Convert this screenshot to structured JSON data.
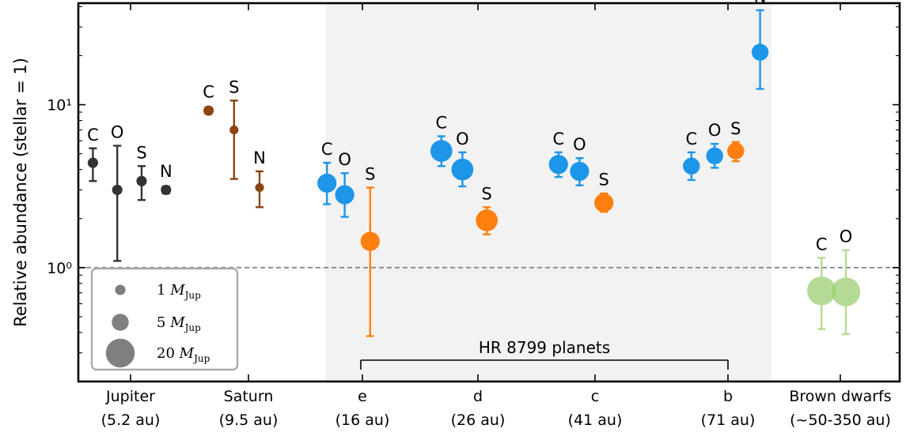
{
  "chart_data": {
    "type": "scatter",
    "ylabel": "Relative abundance (stellar = 1)",
    "yscale": "log",
    "ylim": [
      0.2,
      42
    ],
    "yticks": [
      {
        "value": 1,
        "label": "10⁰"
      },
      {
        "value": 10,
        "label": "10¹"
      }
    ],
    "reference_line": {
      "value": 1,
      "style": "dashed",
      "color": "#888888"
    },
    "categories": [
      {
        "key": "jupiter",
        "line1": "Jupiter",
        "line2": "(5.2 au)"
      },
      {
        "key": "saturn",
        "line1": "Saturn",
        "line2": "(9.5 au)"
      },
      {
        "key": "e",
        "line1": "e",
        "line2": "(16 au)"
      },
      {
        "key": "d",
        "line1": "d",
        "line2": "(26 au)"
      },
      {
        "key": "c",
        "line1": "c",
        "line2": "(41 au)"
      },
      {
        "key": "b",
        "line1": "b",
        "line2": "(71 au)"
      },
      {
        "key": "bd",
        "line1": "Brown dwarfs",
        "line2": "(~50-350 au)"
      }
    ],
    "shaded_region": {
      "from": "e",
      "to": "b",
      "color": "#f2f2f2"
    },
    "group_bracket": {
      "label": "HR 8799 planets",
      "from": "e",
      "to": "b"
    },
    "colors": {
      "jupiter": "#333333",
      "saturn": "#8b4513",
      "carbon_oxygen": "#1c96e8",
      "sulfur": "#ff7f0e",
      "brown_dwarf": "#9bcf73",
      "legend": "#7f7f7f"
    },
    "points": [
      {
        "cat": 0,
        "offset": -0.34,
        "element": "C",
        "value": 4.4,
        "err_low": 3.4,
        "err_high": 5.4,
        "mass": 1,
        "color": "#333333"
      },
      {
        "cat": 0,
        "offset": -0.12,
        "element": "O",
        "value": 3.0,
        "err_low": 1.1,
        "err_high": 5.6,
        "mass": 1,
        "color": "#333333"
      },
      {
        "cat": 0,
        "offset": 0.1,
        "element": "S",
        "value": 3.4,
        "err_low": 2.6,
        "err_high": 4.2,
        "mass": 1,
        "color": "#333333"
      },
      {
        "cat": 0,
        "offset": 0.32,
        "element": "N",
        "value": 3.0,
        "err_low": 2.85,
        "err_high": 3.15,
        "mass": 1,
        "color": "#333333"
      },
      {
        "cat": 1,
        "offset": -0.36,
        "element": "C",
        "value": 9.2,
        "err_low": 8.8,
        "err_high": 9.6,
        "mass": 1,
        "color": "#8b4513"
      },
      {
        "cat": 1,
        "offset": -0.13,
        "element": "S",
        "value": 7.0,
        "err_low": 3.5,
        "err_high": 10.6,
        "mass": 0.5,
        "color": "#8b4513"
      },
      {
        "cat": 1,
        "offset": 0.1,
        "element": "N",
        "value": 3.1,
        "err_low": 2.35,
        "err_high": 3.9,
        "mass": 0.5,
        "color": "#8b4513"
      },
      {
        "cat": 2,
        "offset": -0.32,
        "element": "C",
        "value": 3.3,
        "err_low": 2.45,
        "err_high": 4.4,
        "mass": 7,
        "color": "#1c96e8"
      },
      {
        "cat": 2,
        "offset": -0.16,
        "element": "O",
        "value": 2.8,
        "err_low": 2.05,
        "err_high": 3.8,
        "mass": 7,
        "color": "#1c96e8"
      },
      {
        "cat": 2,
        "offset": 0.07,
        "element": "S",
        "value": 1.45,
        "err_low": 0.38,
        "err_high": 3.1,
        "mass": 7,
        "color": "#ff7f0e"
      },
      {
        "cat": 3,
        "offset": -0.33,
        "element": "C",
        "value": 5.2,
        "err_low": 4.2,
        "err_high": 6.4,
        "mass": 10,
        "color": "#1c96e8"
      },
      {
        "cat": 3,
        "offset": -0.14,
        "element": "O",
        "value": 4.0,
        "err_low": 3.15,
        "err_high": 5.1,
        "mass": 10,
        "color": "#1c96e8"
      },
      {
        "cat": 3,
        "offset": 0.08,
        "element": "S",
        "value": 1.95,
        "err_low": 1.6,
        "err_high": 2.35,
        "mass": 10,
        "color": "#ff7f0e"
      },
      {
        "cat": 4,
        "offset": -0.33,
        "element": "C",
        "value": 4.3,
        "err_low": 3.6,
        "err_high": 5.1,
        "mass": 7,
        "color": "#1c96e8"
      },
      {
        "cat": 4,
        "offset": -0.14,
        "element": "O",
        "value": 3.9,
        "err_low": 3.2,
        "err_high": 4.7,
        "mass": 7,
        "color": "#1c96e8"
      },
      {
        "cat": 4,
        "offset": 0.08,
        "element": "S",
        "value": 2.5,
        "err_low": 2.2,
        "err_high": 2.85,
        "mass": 7,
        "color": "#ff7f0e"
      },
      {
        "cat": 5,
        "offset": -0.33,
        "element": "C",
        "value": 4.2,
        "err_low": 3.45,
        "err_high": 5.1,
        "mass": 5,
        "color": "#1c96e8"
      },
      {
        "cat": 5,
        "offset": -0.12,
        "element": "O",
        "value": 4.85,
        "err_low": 4.1,
        "err_high": 5.75,
        "mass": 5,
        "color": "#1c96e8"
      },
      {
        "cat": 5,
        "offset": 0.07,
        "element": "S",
        "value": 5.2,
        "err_low": 4.5,
        "err_high": 5.9,
        "mass": 5,
        "color": "#ff7f0e"
      },
      {
        "cat": 5,
        "offset": 0.29,
        "element": "N",
        "value": 21.0,
        "err_low": 12.5,
        "err_high": 38.0,
        "mass": 5,
        "color": "#1c96e8"
      },
      {
        "cat": 6,
        "offset": -0.17,
        "element": "C",
        "value": 0.72,
        "err_low": 0.42,
        "err_high": 1.15,
        "mass": 20,
        "color": "#9bcf73",
        "alpha": 0.75
      },
      {
        "cat": 6,
        "offset": 0.05,
        "element": "O",
        "value": 0.71,
        "err_low": 0.39,
        "err_high": 1.28,
        "mass": 20,
        "color": "#9bcf73",
        "alpha": 0.75
      }
    ],
    "legend": {
      "placement": "lower-left",
      "entries": [
        {
          "number": "1",
          "symbol": "M",
          "subscript": "Jup",
          "mass": 1
        },
        {
          "number": "5",
          "symbol": "M",
          "subscript": "Jup",
          "mass": 5
        },
        {
          "number": "20",
          "symbol": "M",
          "subscript": "Jup",
          "mass": 20
        }
      ]
    }
  }
}
